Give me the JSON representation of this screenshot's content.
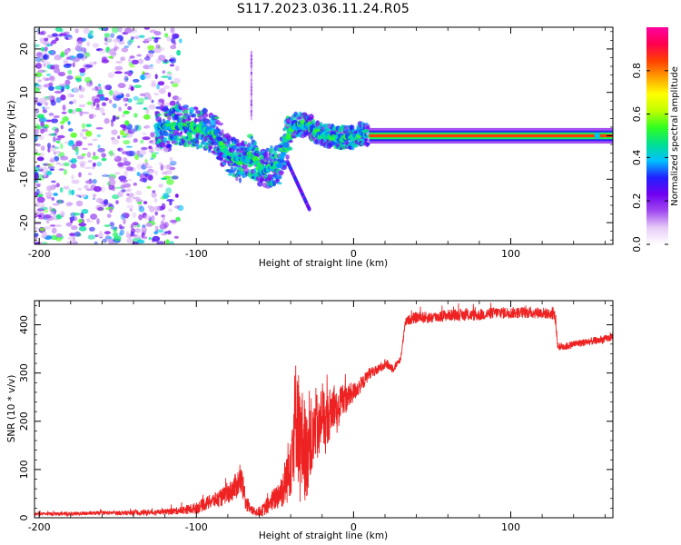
{
  "figure_title": "S117.2023.036.11.24.R05",
  "chart_data": [
    {
      "type": "heatmap",
      "title": "",
      "xlabel": "Height of straight line (km)",
      "ylabel": "Frequency (Hz)",
      "xlim": [
        -203,
        165
      ],
      "ylim": [
        -25,
        25
      ],
      "xticks": [
        -200,
        -100,
        0,
        100
      ],
      "yticks": [
        -20,
        -10,
        0,
        10,
        20
      ],
      "colorbar": {
        "label": "Normalized spectral amplitude",
        "range": [
          0,
          1
        ],
        "ticks": [
          0.0,
          0.2,
          0.4,
          0.6,
          0.8
        ],
        "colors": [
          "#ffffff",
          "#e7ccf6",
          "#a04af0",
          "#7000f0",
          "#2020ff",
          "#00c0ff",
          "#00e090",
          "#30ff20",
          "#c0ff00",
          "#ffff00",
          "#ffa000",
          "#ff4000",
          "#ff0050",
          "#ff00a0"
        ]
      },
      "ridge": {
        "x": [
          -155,
          -120,
          -110,
          -100,
          -95,
          -88,
          -84,
          -80,
          -75,
          -70,
          -66,
          -62,
          -58,
          -52,
          -47,
          -43,
          -40,
          -37,
          -33,
          -28,
          -24,
          -20,
          -15,
          -10,
          -5,
          0,
          5,
          10,
          20,
          40,
          60,
          80,
          100,
          120,
          140,
          155,
          165
        ],
        "y": [
          3,
          2,
          2.5,
          2,
          1.5,
          0.5,
          -2,
          -4.5,
          -5.5,
          -6,
          -4.5,
          -6,
          -8,
          -7,
          -6.5,
          -1.5,
          1.5,
          2.5,
          2.5,
          2.5,
          0.5,
          0.3,
          0,
          -0.5,
          -0.3,
          -0.2,
          0.5,
          0.3,
          0,
          0,
          0,
          0,
          0,
          0,
          0,
          0,
          0
        ]
      },
      "background_scatter_x_range": [
        -203,
        -120
      ],
      "background_scatter_y_range": [
        -25,
        25
      ]
    },
    {
      "type": "line",
      "title": "",
      "xlabel": "Height of straight line (km)",
      "ylabel": "SNR (10 * v/v)",
      "xlim": [
        -203,
        165
      ],
      "ylim": [
        0,
        450
      ],
      "xticks": [
        -200,
        -100,
        0,
        100
      ],
      "yticks": [
        0,
        100,
        200,
        300,
        400
      ],
      "color": "#ee2222",
      "series": [
        {
          "x": [
            -203,
            -180,
            -160,
            -140,
            -120,
            -110,
            -100,
            -95,
            -90,
            -85,
            -80,
            -75,
            -72,
            -70,
            -68,
            -65,
            -62,
            -58,
            -55,
            -50,
            -45,
            -42,
            -40,
            -38,
            -36,
            -34,
            -32,
            -30,
            -28,
            -26,
            -24,
            -22,
            -20,
            -18,
            -16,
            -14,
            -12,
            -10,
            -8,
            -5,
            -2,
            0,
            3,
            6,
            10,
            15,
            20,
            25,
            28,
            30,
            32,
            33,
            35,
            40,
            50,
            60,
            70,
            80,
            90,
            100,
            110,
            120,
            128,
            130,
            135,
            140,
            150,
            160,
            165
          ],
          "y": [
            8,
            8,
            10,
            10,
            12,
            15,
            20,
            28,
            35,
            40,
            50,
            65,
            80,
            55,
            30,
            15,
            12,
            15,
            25,
            40,
            60,
            90,
            130,
            180,
            230,
            140,
            160,
            120,
            180,
            150,
            200,
            170,
            230,
            190,
            210,
            225,
            240,
            205,
            250,
            245,
            255,
            260,
            270,
            280,
            300,
            305,
            320,
            310,
            320,
            330,
            380,
            405,
            410,
            415,
            415,
            420,
            420,
            420,
            425,
            425,
            425,
            425,
            420,
            355,
            355,
            360,
            365,
            370,
            375
          ],
          "noise": [
            3,
            4,
            4,
            5,
            6,
            8,
            12,
            14,
            15,
            18,
            20,
            28,
            30,
            28,
            20,
            10,
            8,
            12,
            18,
            25,
            40,
            60,
            90,
            110,
            130,
            120,
            110,
            100,
            90,
            80,
            70,
            70,
            65,
            60,
            55,
            50,
            45,
            40,
            35,
            30,
            25,
            20,
            18,
            15,
            12,
            10,
            10,
            10,
            8,
            6,
            8,
            8,
            10,
            12,
            12,
            12,
            12,
            12,
            12,
            12,
            12,
            12,
            10,
            8,
            8,
            8,
            8,
            8,
            8
          ]
        }
      ]
    }
  ]
}
